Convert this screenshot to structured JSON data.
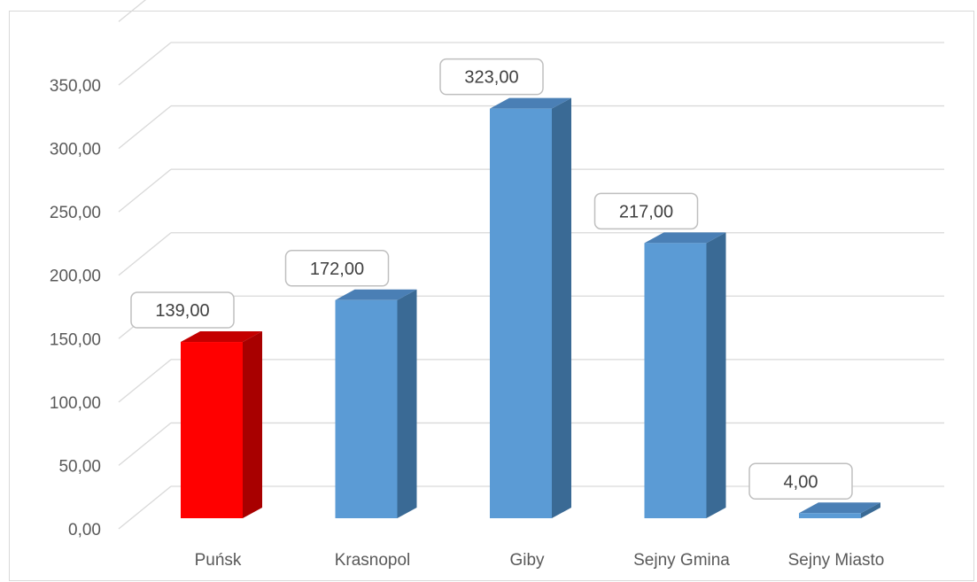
{
  "chart_data": {
    "type": "bar",
    "categories": [
      "Puńsk",
      "Krasnopol",
      "Giby",
      "Sejny Gmina",
      "Sejny Miasto"
    ],
    "values": [
      139,
      172,
      323,
      217,
      4
    ],
    "value_labels": [
      "139,00",
      "172,00",
      "323,00",
      "217,00",
      "4,00"
    ],
    "ylim": [
      0,
      350
    ],
    "yticks": [
      0,
      50,
      100,
      150,
      200,
      250,
      300,
      350
    ],
    "ytick_labels": [
      "0,00",
      "50,00",
      "100,00",
      "150,00",
      "200,00",
      "250,00",
      "300,00",
      "350,00"
    ],
    "title": "",
    "xlabel": "",
    "ylabel": "",
    "grid": true,
    "three_d": true,
    "highlight_category": "Puńsk",
    "colors": {
      "default": "#5b9bd5",
      "default_side": "#3a6a95",
      "highlight": "#ff0000",
      "highlight_side": "#a80000",
      "grid": "#d9d9d9",
      "text": "#595959"
    }
  }
}
